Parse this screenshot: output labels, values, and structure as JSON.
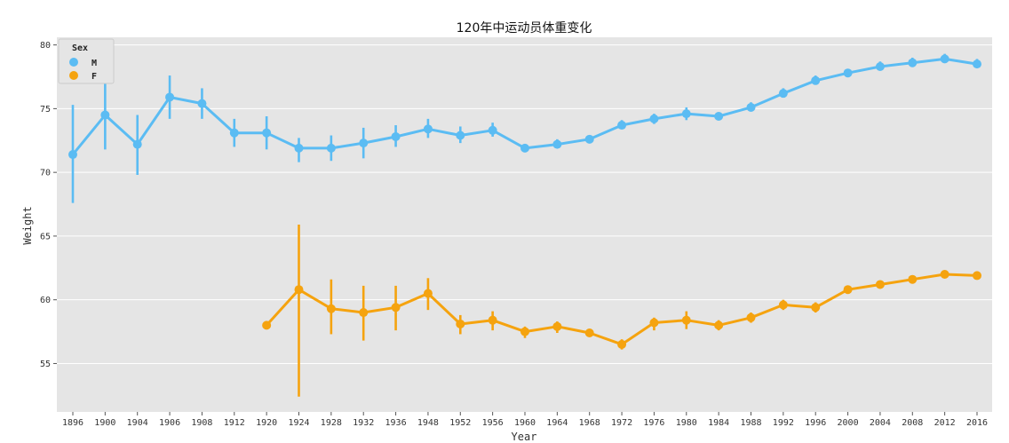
{
  "chart_data": {
    "type": "line",
    "title": "120年中运动员体重变化",
    "xlabel": "Year",
    "ylabel": "Weight",
    "categories": [
      "1896",
      "1900",
      "1904",
      "1906",
      "1908",
      "1912",
      "1920",
      "1924",
      "1928",
      "1932",
      "1936",
      "1948",
      "1952",
      "1956",
      "1960",
      "1964",
      "1968",
      "1972",
      "1976",
      "1980",
      "1984",
      "1988",
      "1992",
      "1996",
      "2000",
      "2004",
      "2008",
      "2012",
      "2016"
    ],
    "yticks": [
      55,
      60,
      65,
      70,
      75,
      80
    ],
    "ylim": [
      51.2,
      80.6
    ],
    "grid": true,
    "legend": {
      "title": "Sex",
      "position": "top-left"
    },
    "series": [
      {
        "name": "M",
        "color": "#5bbcf3",
        "values": [
          71.4,
          74.5,
          72.2,
          75.9,
          75.4,
          73.1,
          73.1,
          71.9,
          71.9,
          72.3,
          72.8,
          73.4,
          72.9,
          73.3,
          71.9,
          72.2,
          72.6,
          73.7,
          74.2,
          74.6,
          74.4,
          75.1,
          76.2,
          77.2,
          77.8,
          78.3,
          78.6,
          78.9,
          78.5
        ],
        "err_low": [
          67.6,
          71.8,
          69.8,
          74.2,
          74.2,
          72.0,
          71.8,
          70.8,
          70.9,
          71.1,
          72.0,
          72.7,
          72.3,
          72.8,
          71.8,
          71.9,
          72.4,
          73.4,
          73.8,
          74.1,
          74.1,
          74.8,
          75.9,
          76.9,
          77.5,
          78.0,
          78.3,
          78.6,
          78.2
        ],
        "err_high": [
          75.3,
          77.4,
          74.5,
          77.6,
          76.6,
          74.2,
          74.4,
          72.7,
          72.9,
          73.5,
          73.7,
          74.2,
          73.6,
          73.9,
          72.1,
          72.6,
          72.9,
          74.1,
          74.6,
          75.1,
          74.7,
          75.5,
          76.6,
          77.6,
          78.1,
          78.7,
          79.0,
          79.3,
          78.9
        ]
      },
      {
        "name": "F",
        "color": "#f5a30f",
        "values": [
          null,
          null,
          null,
          null,
          null,
          null,
          58.0,
          60.8,
          59.3,
          59.0,
          59.4,
          60.5,
          58.1,
          58.4,
          57.5,
          57.9,
          57.4,
          56.5,
          58.2,
          58.4,
          58.0,
          58.6,
          59.6,
          59.4,
          60.8,
          61.2,
          61.6,
          62.0,
          61.9
        ],
        "err_low": [
          null,
          null,
          null,
          null,
          null,
          null,
          58.0,
          52.4,
          57.3,
          56.8,
          57.6,
          59.2,
          57.3,
          57.6,
          57.0,
          57.4,
          57.1,
          56.1,
          57.6,
          57.7,
          57.6,
          58.2,
          59.2,
          59.0,
          60.5,
          60.9,
          61.3,
          61.7,
          61.6
        ],
        "err_high": [
          null,
          null,
          null,
          null,
          null,
          null,
          58.0,
          65.9,
          61.6,
          61.1,
          61.1,
          61.7,
          58.8,
          59.1,
          57.9,
          58.3,
          57.7,
          56.9,
          58.6,
          59.1,
          58.4,
          59.0,
          60.0,
          59.8,
          61.1,
          61.5,
          61.9,
          62.3,
          62.2
        ]
      }
    ]
  }
}
